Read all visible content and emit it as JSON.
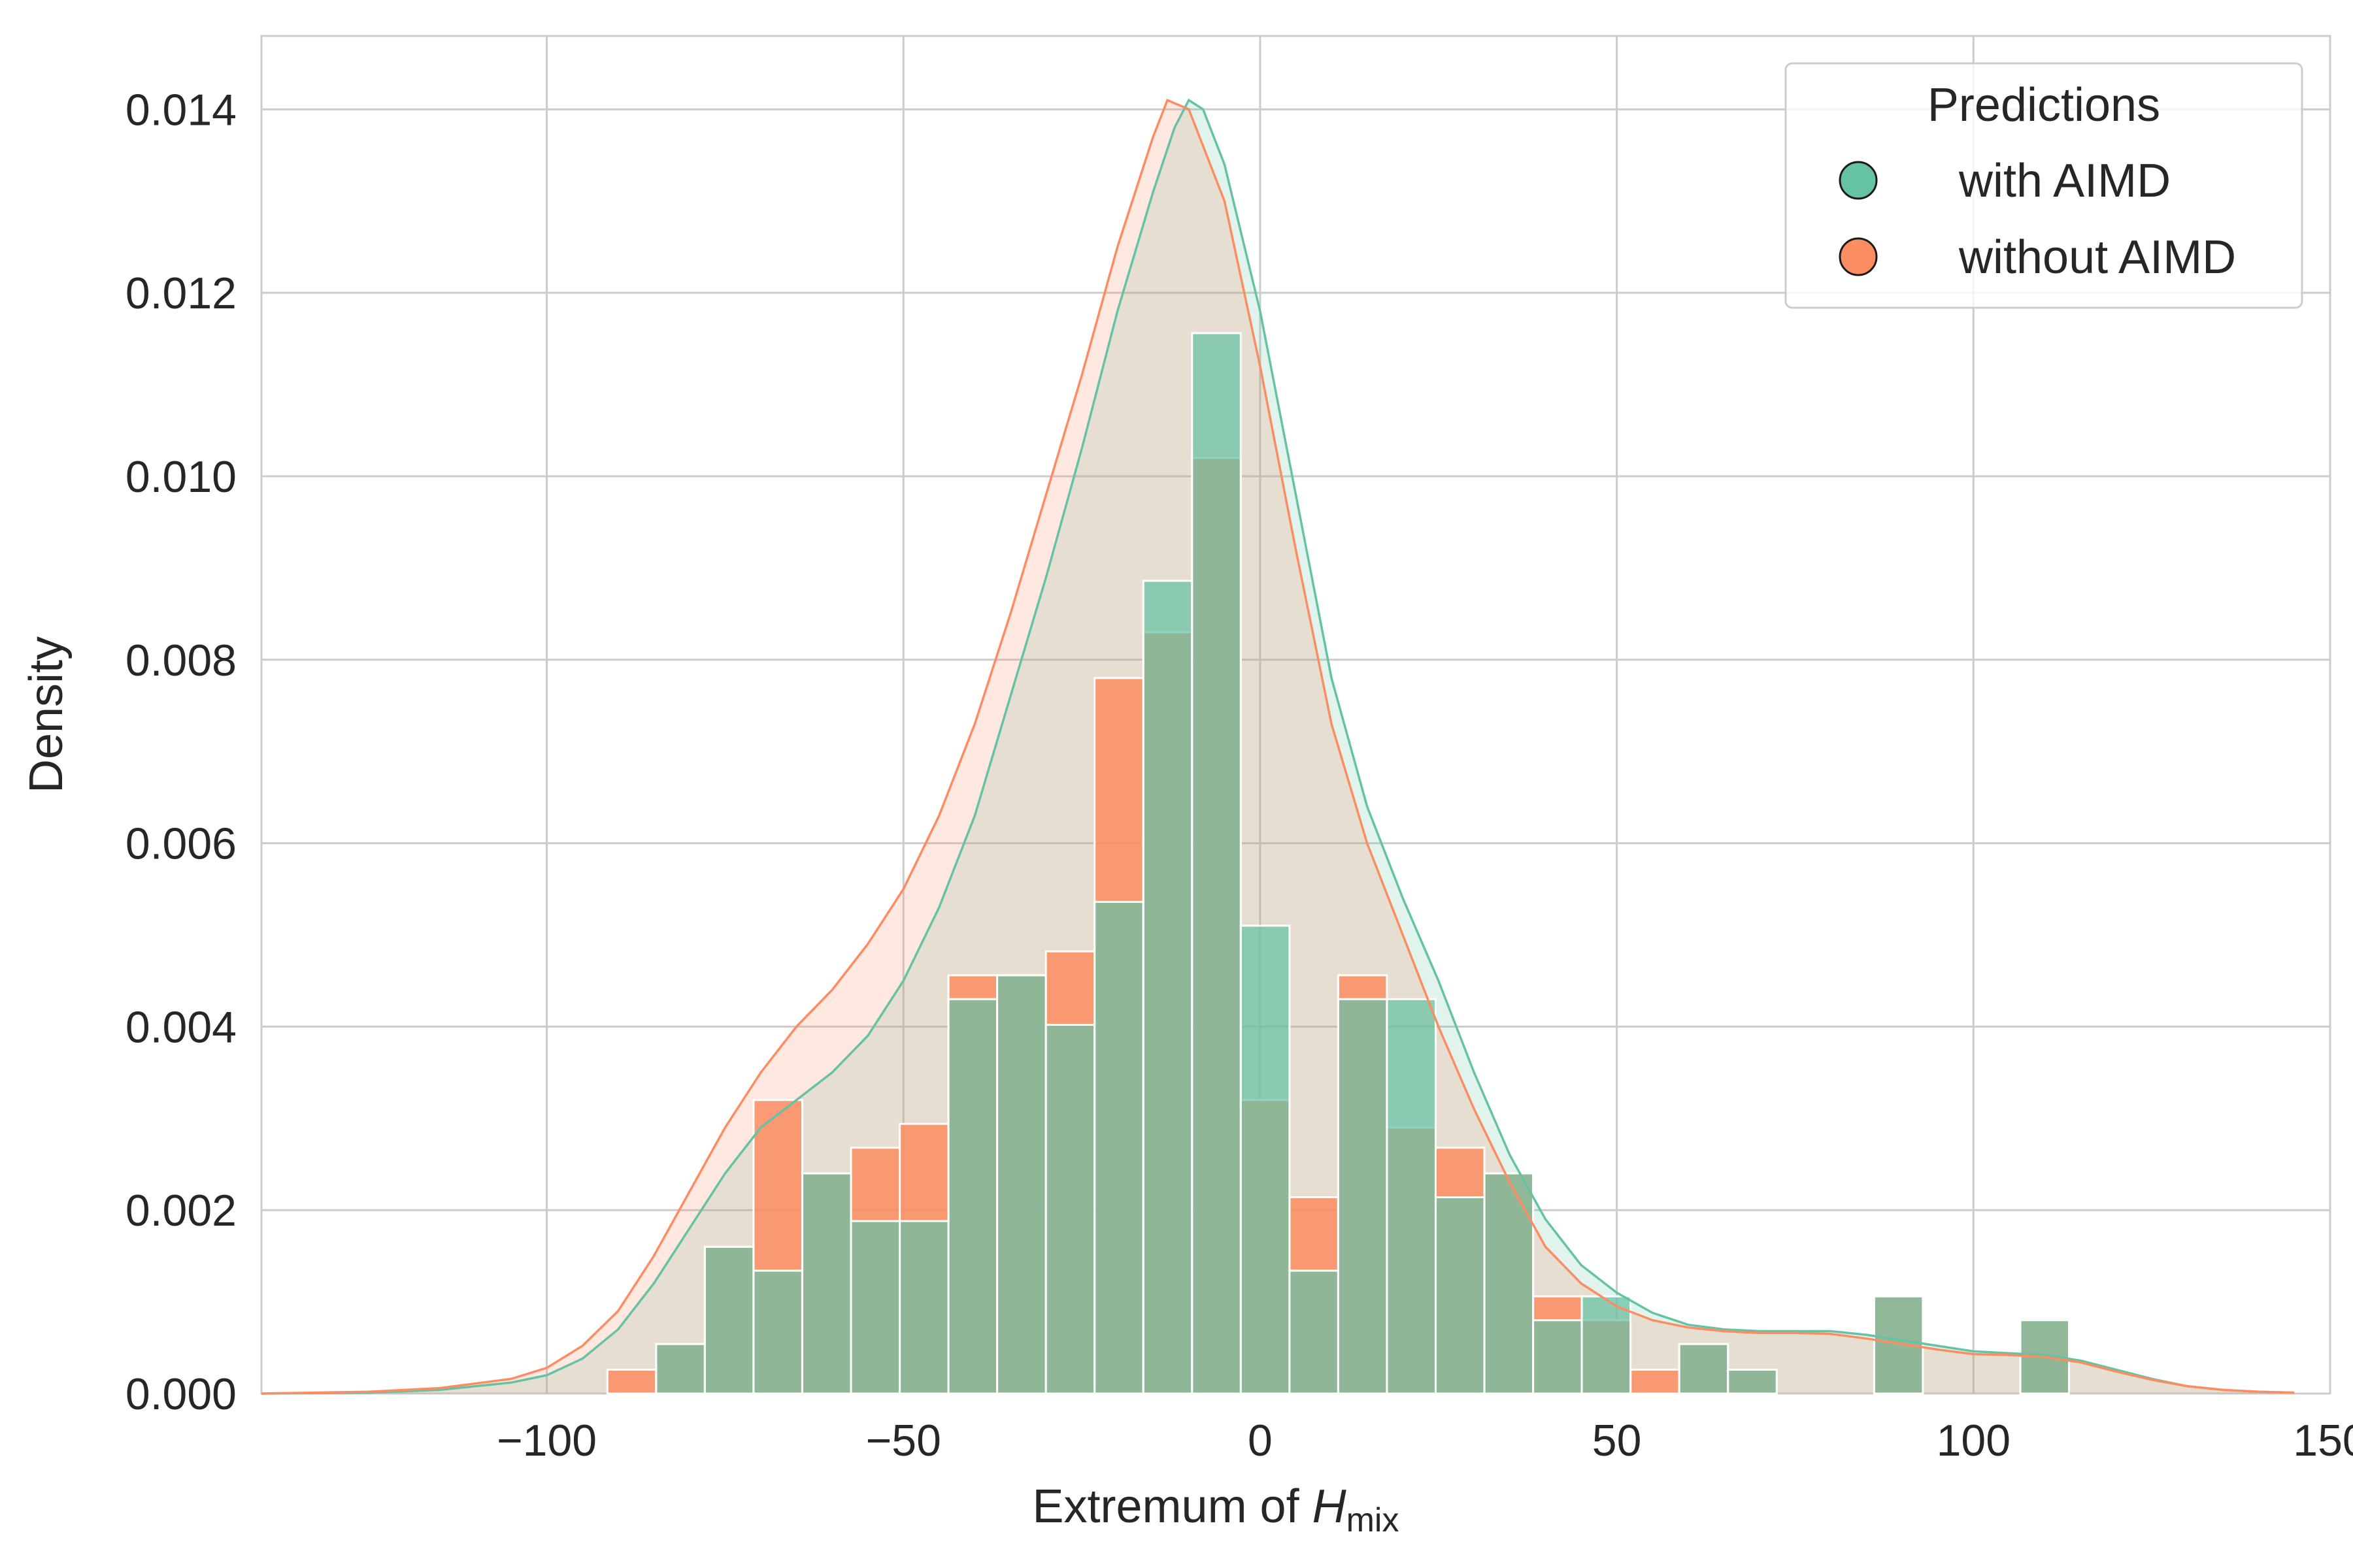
{
  "chart_data": {
    "type": "bar",
    "xlabel": "Extremum of ",
    "xlabel_var": "H",
    "xlabel_sub": "mix",
    "ylabel": "Density",
    "xlim": [
      -140,
      150
    ],
    "ylim": [
      0,
      0.0148
    ],
    "xticks": [
      -100,
      -50,
      0,
      50,
      100,
      150
    ],
    "xtick_labels": [
      "−100",
      "−50",
      "0",
      "50",
      "100",
      "150"
    ],
    "yticks": [
      0,
      0.002,
      0.004,
      0.006,
      0.008,
      0.01,
      0.012,
      0.014
    ],
    "ytick_labels": [
      "0.000",
      "0.002",
      "0.004",
      "0.006",
      "0.008",
      "0.010",
      "0.012",
      "0.014"
    ],
    "grid": true,
    "legend": {
      "title": "Predictions",
      "placement": "top-right",
      "entries": [
        {
          "label": "with AIMD",
          "color": "#66c2a5"
        },
        {
          "label": "without AIMD",
          "color": "#fc8d62"
        }
      ]
    },
    "bins": {
      "start": -91.5,
      "width": 6.83,
      "count": 30
    },
    "series": [
      {
        "name": "with AIMD",
        "color": "#66c2a5",
        "hist": [
          0,
          0.00054,
          0.0016,
          0.00134,
          0.0024,
          0.00188,
          0.00188,
          0.0043,
          0.00456,
          0.00402,
          0.00536,
          0.00886,
          0.01156,
          0.0051,
          0.00134,
          0.0043,
          0.0043,
          0.00214,
          0.0024,
          0.0008,
          0.00106,
          0,
          0.00054,
          0.00026,
          0,
          0,
          0.00106,
          0,
          0,
          0.0008
        ],
        "kde": [
          [
            -140,
            0
          ],
          [
            -125,
            1e-05
          ],
          [
            -115,
            4e-05
          ],
          [
            -105,
            0.00012
          ],
          [
            -100,
            0.0002
          ],
          [
            -95,
            0.00038
          ],
          [
            -90,
            0.0007
          ],
          [
            -85,
            0.0012
          ],
          [
            -80,
            0.0018
          ],
          [
            -75,
            0.0024
          ],
          [
            -70,
            0.0029
          ],
          [
            -65,
            0.0032
          ],
          [
            -60,
            0.0035
          ],
          [
            -55,
            0.0039
          ],
          [
            -50,
            0.0045
          ],
          [
            -45,
            0.0053
          ],
          [
            -40,
            0.0063
          ],
          [
            -35,
            0.0076
          ],
          [
            -30,
            0.0089
          ],
          [
            -25,
            0.0103
          ],
          [
            -20,
            0.0118
          ],
          [
            -15,
            0.0131
          ],
          [
            -12,
            0.0138
          ],
          [
            -10,
            0.0141
          ],
          [
            -8,
            0.014
          ],
          [
            -5,
            0.0134
          ],
          [
            0,
            0.0118
          ],
          [
            5,
            0.0098
          ],
          [
            10,
            0.0078
          ],
          [
            15,
            0.0064
          ],
          [
            20,
            0.0054
          ],
          [
            25,
            0.0045
          ],
          [
            30,
            0.0035
          ],
          [
            35,
            0.0026
          ],
          [
            40,
            0.0019
          ],
          [
            45,
            0.0014
          ],
          [
            50,
            0.0011
          ],
          [
            55,
            0.00088
          ],
          [
            60,
            0.00075
          ],
          [
            65,
            0.0007
          ],
          [
            70,
            0.00068
          ],
          [
            75,
            0.00068
          ],
          [
            80,
            0.00068
          ],
          [
            85,
            0.00064
          ],
          [
            90,
            0.00058
          ],
          [
            95,
            0.00052
          ],
          [
            100,
            0.00046
          ],
          [
            105,
            0.00044
          ],
          [
            110,
            0.00042
          ],
          [
            115,
            0.00036
          ],
          [
            120,
            0.00026
          ],
          [
            125,
            0.00016
          ],
          [
            130,
            8e-05
          ],
          [
            135,
            4e-05
          ],
          [
            140,
            2e-05
          ],
          [
            145,
            1e-05
          ]
        ]
      },
      {
        "name": "without AIMD",
        "color": "#fc8d62",
        "hist": [
          0.00026,
          0.00054,
          0.0016,
          0.0032,
          0.0024,
          0.00268,
          0.00294,
          0.00456,
          0.00456,
          0.00482,
          0.0078,
          0.0083,
          0.0102,
          0.0032,
          0.00214,
          0.00456,
          0.0029,
          0.00268,
          0.0024,
          0.00106,
          0.0008,
          0.00026,
          0.00054,
          0.00026,
          0,
          0,
          0.00106,
          0,
          0,
          0.0008
        ],
        "kde": [
          [
            -140,
            0
          ],
          [
            -125,
            2e-05
          ],
          [
            -115,
            6e-05
          ],
          [
            -105,
            0.00016
          ],
          [
            -100,
            0.00028
          ],
          [
            -95,
            0.00052
          ],
          [
            -90,
            0.0009
          ],
          [
            -85,
            0.0015
          ],
          [
            -80,
            0.0022
          ],
          [
            -75,
            0.0029
          ],
          [
            -70,
            0.0035
          ],
          [
            -65,
            0.004
          ],
          [
            -60,
            0.0044
          ],
          [
            -55,
            0.0049
          ],
          [
            -50,
            0.0055
          ],
          [
            -45,
            0.0063
          ],
          [
            -40,
            0.0073
          ],
          [
            -35,
            0.0085
          ],
          [
            -30,
            0.0098
          ],
          [
            -25,
            0.0111
          ],
          [
            -20,
            0.0125
          ],
          [
            -15,
            0.0137
          ],
          [
            -13,
            0.0141
          ],
          [
            -10,
            0.014
          ],
          [
            -5,
            0.013
          ],
          [
            0,
            0.0112
          ],
          [
            5,
            0.0092
          ],
          [
            10,
            0.0073
          ],
          [
            15,
            0.006
          ],
          [
            20,
            0.005
          ],
          [
            25,
            0.004
          ],
          [
            30,
            0.0031
          ],
          [
            35,
            0.0023
          ],
          [
            40,
            0.0016
          ],
          [
            45,
            0.0012
          ],
          [
            50,
            0.00095
          ],
          [
            55,
            0.0008
          ],
          [
            60,
            0.00072
          ],
          [
            65,
            0.00068
          ],
          [
            70,
            0.00066
          ],
          [
            75,
            0.00066
          ],
          [
            80,
            0.00065
          ],
          [
            85,
            0.0006
          ],
          [
            90,
            0.00054
          ],
          [
            95,
            0.00048
          ],
          [
            100,
            0.00043
          ],
          [
            105,
            0.00042
          ],
          [
            110,
            0.0004
          ],
          [
            115,
            0.00034
          ],
          [
            120,
            0.00024
          ],
          [
            125,
            0.00015
          ],
          [
            130,
            8e-05
          ],
          [
            135,
            4e-05
          ],
          [
            140,
            2e-05
          ],
          [
            145,
            1e-05
          ]
        ]
      }
    ]
  }
}
